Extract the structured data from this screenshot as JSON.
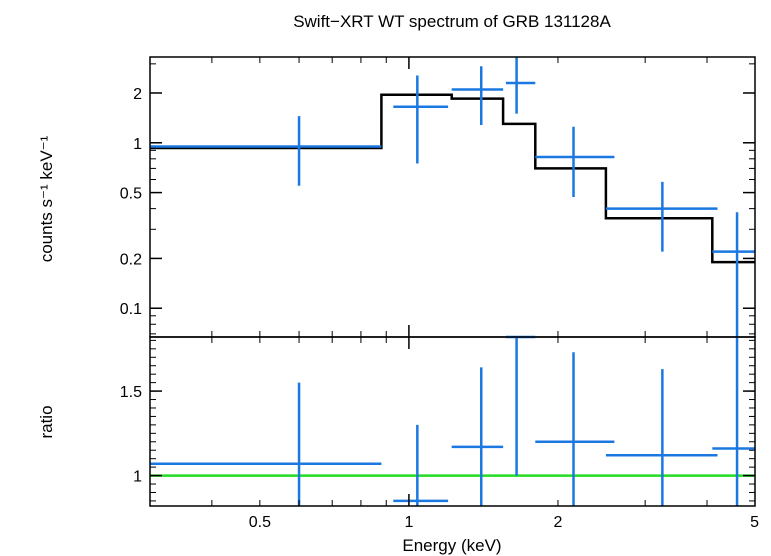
{
  "chart_data": {
    "type": "scatter",
    "title": "Swift−XRT WT spectrum of GRB 131128A",
    "xlabel": "Energy (keV)",
    "xscale": "log",
    "xlim": [
      0.3,
      5
    ],
    "x_ticks": [
      {
        "value": 0.5,
        "label": "0.5"
      },
      {
        "value": 1,
        "label": "1"
      },
      {
        "value": 2,
        "label": "2"
      },
      {
        "value": 5,
        "label": "5"
      }
    ],
    "colors": {
      "data": "#1a78e0",
      "model": "#000000",
      "unity": "#22dd22"
    },
    "panels": [
      {
        "name": "spectrum",
        "ylabel": "counts s⁻¹ keV⁻¹",
        "yscale": "log",
        "ylim": [
          0.067,
          3.3
        ],
        "y_ticks": [
          {
            "value": 0.1,
            "label": "0.1"
          },
          {
            "value": 0.2,
            "label": "0.2"
          },
          {
            "value": 0.5,
            "label": "0.5"
          },
          {
            "value": 1,
            "label": "1"
          },
          {
            "value": 2,
            "label": "2"
          }
        ],
        "data": [
          {
            "x": 0.6,
            "xlo": 0.3,
            "xhi": 0.88,
            "y": 0.95,
            "ylo": 0.55,
            "yhi": 1.45
          },
          {
            "x": 1.04,
            "xlo": 0.93,
            "xhi": 1.2,
            "y": 1.65,
            "ylo": 0.75,
            "yhi": 2.55
          },
          {
            "x": 1.4,
            "xlo": 1.22,
            "xhi": 1.55,
            "y": 2.1,
            "ylo": 1.28,
            "yhi": 2.9
          },
          {
            "x": 1.65,
            "xlo": 1.57,
            "xhi": 1.8,
            "y": 2.3,
            "ylo": 1.5,
            "yhi": 3.3
          },
          {
            "x": 2.15,
            "xlo": 1.8,
            "xhi": 2.6,
            "y": 0.82,
            "ylo": 0.47,
            "yhi": 1.25
          },
          {
            "x": 3.25,
            "xlo": 2.5,
            "xhi": 4.2,
            "y": 0.4,
            "ylo": 0.22,
            "yhi": 0.58
          },
          {
            "x": 4.6,
            "xlo": 4.1,
            "xhi": 5.0,
            "y": 0.22,
            "ylo": 0.067,
            "yhi": 0.38
          }
        ],
        "model": [
          {
            "x0": 0.3,
            "x1": 0.88,
            "y": 0.93
          },
          {
            "x0": 0.88,
            "x1": 1.22,
            "y": 1.95
          },
          {
            "x0": 1.22,
            "x1": 1.55,
            "y": 1.85
          },
          {
            "x0": 1.55,
            "x1": 1.8,
            "y": 1.3
          },
          {
            "x0": 1.8,
            "x1": 2.5,
            "y": 0.7
          },
          {
            "x0": 2.5,
            "x1": 4.1,
            "y": 0.35
          },
          {
            "x0": 4.1,
            "x1": 5.0,
            "y": 0.19
          }
        ]
      },
      {
        "name": "ratio",
        "ylabel": "ratio",
        "yscale": "linear",
        "ylim": [
          0.82,
          1.82
        ],
        "y_ticks": [
          {
            "value": 1,
            "label": "1"
          },
          {
            "value": 1.5,
            "label": "1.5"
          }
        ],
        "unity": 1,
        "data": [
          {
            "x": 0.6,
            "xlo": 0.3,
            "xhi": 0.88,
            "y": 1.07,
            "ylo": 0.82,
            "yhi": 1.55
          },
          {
            "x": 1.04,
            "xlo": 0.93,
            "xhi": 1.2,
            "y": 0.85,
            "ylo": 0.82,
            "yhi": 1.3
          },
          {
            "x": 1.4,
            "xlo": 1.22,
            "xhi": 1.55,
            "y": 1.17,
            "ylo": 0.82,
            "yhi": 1.64
          },
          {
            "x": 1.65,
            "xlo": 1.57,
            "xhi": 1.8,
            "y": 1.82,
            "ylo": 1.0,
            "yhi": 1.82
          },
          {
            "x": 2.15,
            "xlo": 1.8,
            "xhi": 2.6,
            "y": 1.2,
            "ylo": 0.82,
            "yhi": 1.73
          },
          {
            "x": 3.25,
            "xlo": 2.5,
            "xhi": 4.2,
            "y": 1.12,
            "ylo": 0.82,
            "yhi": 1.63
          },
          {
            "x": 4.6,
            "xlo": 4.1,
            "xhi": 5.0,
            "y": 1.16,
            "ylo": 0.82,
            "yhi": 1.82
          }
        ]
      }
    ]
  }
}
